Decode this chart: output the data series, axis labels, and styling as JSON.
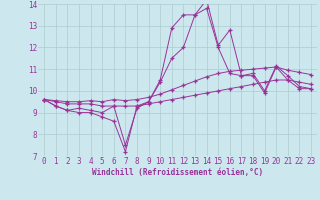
{
  "bg_color": "#cce8ee",
  "grid_color": "#aacccc",
  "line_color": "#993399",
  "marker": "+",
  "xlabel": "Windchill (Refroidissement éolien,°C)",
  "xlabel_color": "#993399",
  "xlim_min": -0.5,
  "xlim_max": 23.5,
  "ylim_min": 7,
  "ylim_max": 14,
  "yticks": [
    7,
    8,
    9,
    10,
    11,
    12,
    13,
    14
  ],
  "xticks": [
    0,
    1,
    2,
    3,
    4,
    5,
    6,
    7,
    8,
    9,
    10,
    11,
    12,
    13,
    14,
    15,
    16,
    17,
    18,
    19,
    20,
    21,
    22,
    23
  ],
  "series": [
    [
      9.6,
      9.3,
      9.1,
      9.0,
      9.0,
      8.8,
      8.6,
      7.2,
      9.3,
      9.5,
      10.5,
      12.9,
      13.5,
      13.5,
      14.2,
      12.1,
      12.8,
      10.7,
      10.7,
      9.9,
      11.1,
      10.5,
      10.1,
      10.1
    ],
    [
      9.6,
      9.3,
      9.1,
      9.2,
      9.1,
      9.0,
      9.3,
      7.5,
      9.2,
      9.5,
      10.4,
      11.5,
      12.0,
      13.5,
      13.8,
      12.0,
      10.8,
      10.7,
      10.8,
      10.0,
      11.15,
      10.7,
      10.2,
      10.1
    ],
    [
      9.6,
      9.55,
      9.5,
      9.5,
      9.55,
      9.5,
      9.6,
      9.55,
      9.6,
      9.7,
      9.85,
      10.05,
      10.25,
      10.45,
      10.65,
      10.8,
      10.9,
      10.95,
      11.0,
      11.05,
      11.1,
      10.95,
      10.85,
      10.75
    ],
    [
      9.6,
      9.5,
      9.4,
      9.4,
      9.4,
      9.3,
      9.3,
      9.3,
      9.3,
      9.4,
      9.5,
      9.6,
      9.7,
      9.8,
      9.9,
      10.0,
      10.1,
      10.2,
      10.3,
      10.4,
      10.5,
      10.5,
      10.4,
      10.3
    ]
  ],
  "tick_fontsize": 5.5,
  "xlabel_fontsize": 5.5
}
